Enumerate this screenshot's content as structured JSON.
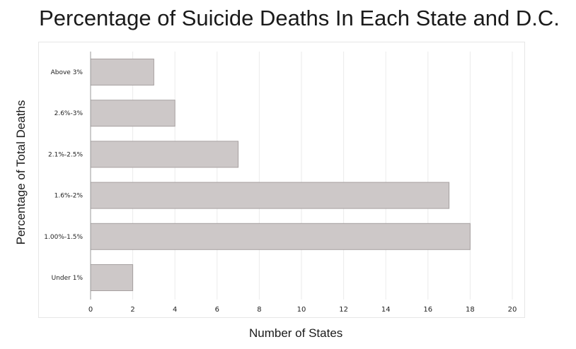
{
  "chart_data": {
    "type": "bar",
    "orientation": "horizontal",
    "title": "Percentage of Suicide Deaths In Each State and D.C.",
    "xlabel": "Number of States",
    "ylabel": "Percentage of Total Deaths",
    "categories": [
      "Above 3%",
      "2.6%-3%",
      "2.1%-2.5%",
      "1.6%-2%",
      "1.00%-1.5%",
      "Under 1%"
    ],
    "values": [
      3,
      4,
      7,
      17,
      18,
      2
    ],
    "xlim": [
      0,
      20
    ],
    "xticks": [
      "0",
      "2",
      "4",
      "6",
      "8",
      "10",
      "12",
      "14",
      "16",
      "18",
      "20"
    ],
    "grid": "vertical",
    "colors": {
      "bar_fill": "#cdc8c8",
      "bar_stroke": "#a7a1a1",
      "grid": "#ebebeb",
      "axis": "#9a9a9a"
    }
  }
}
